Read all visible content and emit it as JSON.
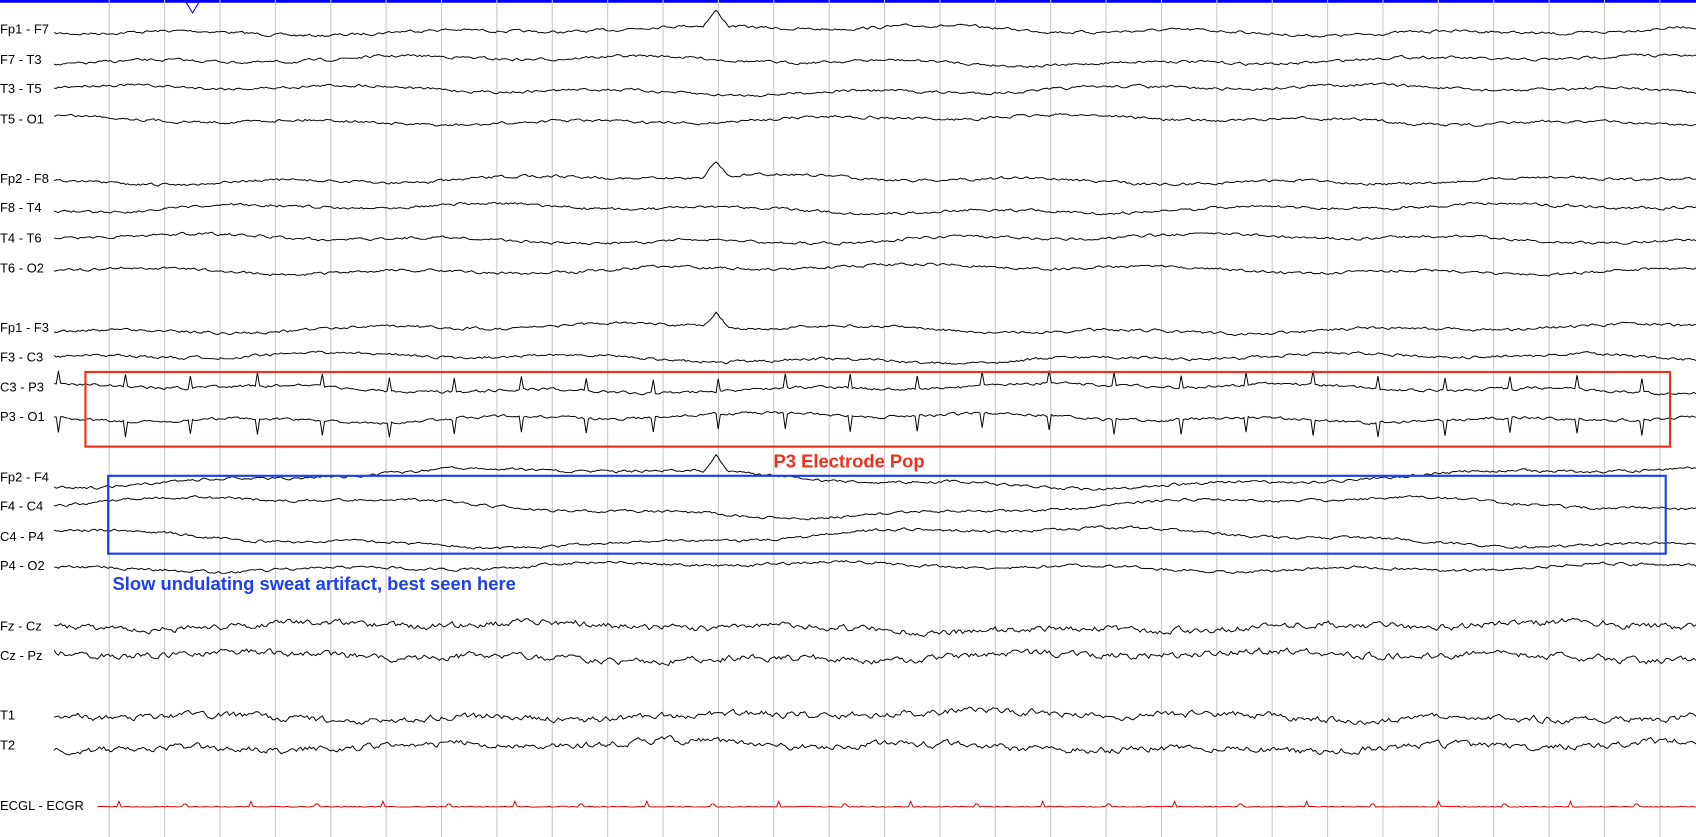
{
  "channels": [
    "Fp1 - F7",
    "F7 - T3",
    "T3 - T5",
    "T5 - O1",
    "Fp2 - F8",
    "F8 - T4",
    "T4 - T6",
    "T6 - O2",
    "Fp1 - F3",
    "F3 - C3",
    "C3 - P3",
    "P3 - O1",
    "Fp2 - F4",
    "F4 - C4",
    "C4 - P4",
    "P4 - O2",
    "Fz - Cz",
    "Cz - Pz",
    "T1",
    "T2",
    "ECGL - ECGR"
  ],
  "annotations": [
    {
      "label": "P3 Electrode Pop"
    },
    {
      "label": "Slow undulating sweat artifact, best seen here"
    }
  ]
}
